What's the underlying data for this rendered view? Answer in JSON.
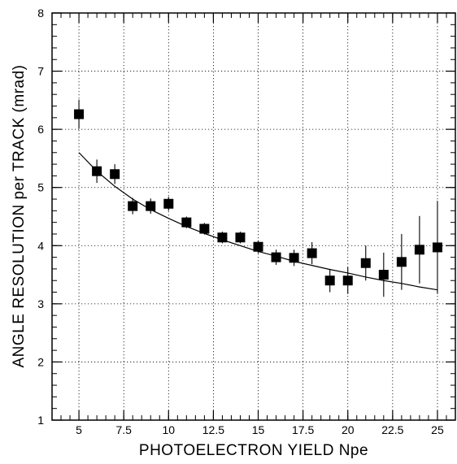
{
  "chart_data": {
    "type": "scatter",
    "xlabel": "PHOTOELECTRON YIELD  Npe",
    "ylabel": "ANGLE RESOLUTION per TRACK  (mrad)",
    "xlim": [
      3.5,
      26
    ],
    "ylim": [
      1,
      8
    ],
    "x_ticks": [
      5,
      7.5,
      10,
      12.5,
      15,
      17.5,
      20,
      22.5,
      25
    ],
    "x_tick_labels": [
      "5",
      "7.5",
      "10",
      "12.5",
      "15",
      "17.5",
      "20",
      "22.5",
      "25"
    ],
    "y_ticks": [
      1,
      2,
      3,
      4,
      5,
      6,
      7,
      8
    ],
    "y_tick_labels": [
      "1",
      "2",
      "3",
      "4",
      "5",
      "6",
      "7",
      "8"
    ],
    "grid": true,
    "marker": "filled-square",
    "series": [
      {
        "x": [
          5,
          6,
          7,
          8,
          9,
          10,
          11,
          12,
          13,
          14,
          15,
          16,
          17,
          18,
          19,
          20,
          21,
          22,
          23,
          24,
          25
        ],
        "y": [
          6.26,
          5.28,
          5.23,
          4.68,
          4.68,
          4.72,
          4.4,
          4.29,
          4.14,
          4.14,
          3.98,
          3.8,
          3.79,
          3.87,
          3.4,
          3.4,
          3.7,
          3.5,
          3.72,
          3.93,
          3.97
        ],
        "err": [
          0.25,
          0.2,
          0.17,
          0.14,
          0.13,
          0.12,
          0.1,
          0.1,
          0.1,
          0.1,
          0.11,
          0.13,
          0.14,
          0.19,
          0.2,
          0.23,
          0.3,
          0.38,
          0.48,
          0.58,
          0.8
        ]
      }
    ],
    "fit_curve": {
      "x": [
        5,
        6,
        7,
        8,
        9,
        10,
        11,
        12,
        13,
        14,
        15,
        16,
        17,
        18,
        19,
        20,
        21,
        22,
        23,
        24,
        25
      ],
      "y": [
        5.6,
        5.28,
        5.02,
        4.8,
        4.62,
        4.47,
        4.33,
        4.21,
        4.1,
        4.0,
        3.9,
        3.82,
        3.73,
        3.66,
        3.59,
        3.53,
        3.46,
        3.4,
        3.35,
        3.29,
        3.24
      ]
    }
  }
}
